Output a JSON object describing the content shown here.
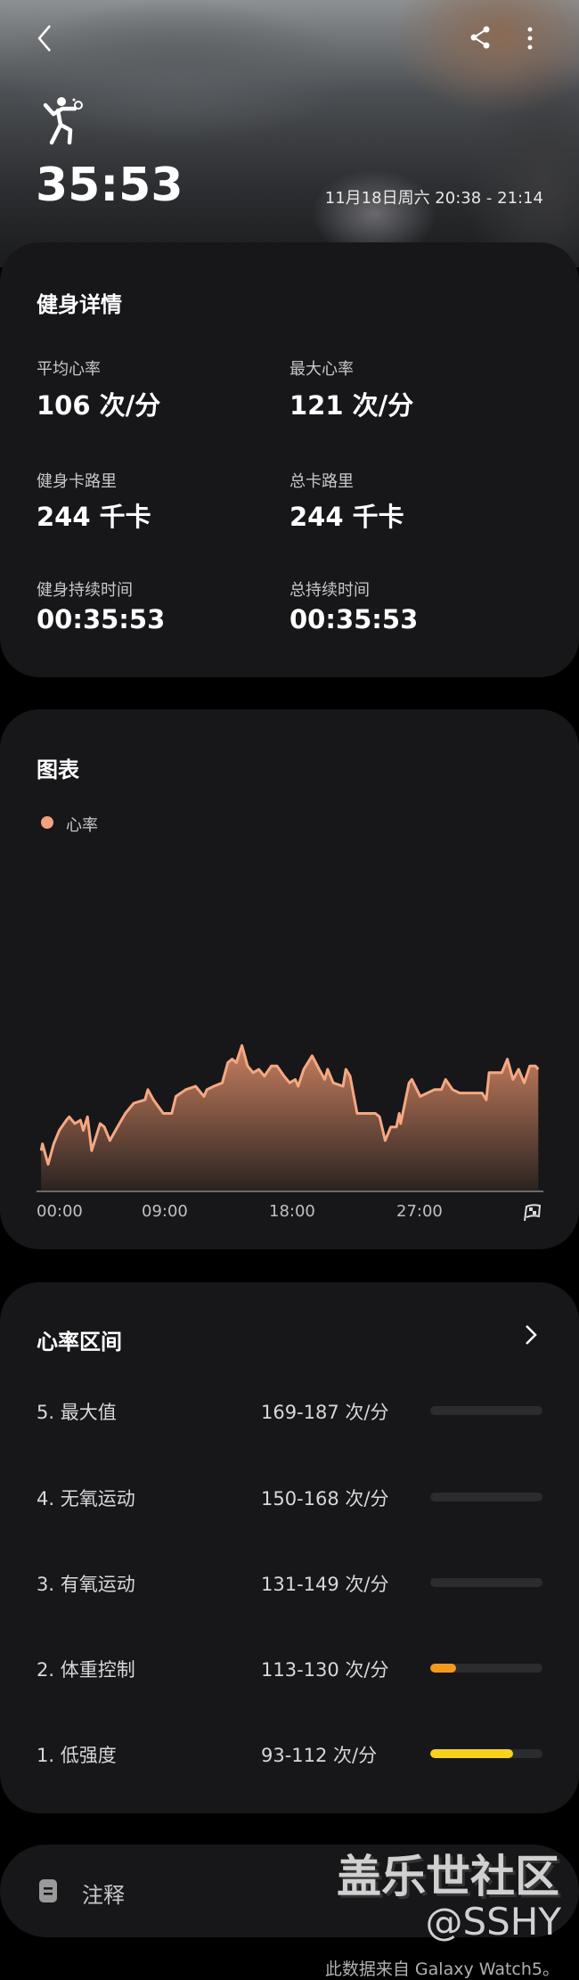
{
  "header": {
    "duration": "35:53",
    "date_range": "11月18日周六 20:38 - 21:14",
    "activity_icon": "badminton-player-icon"
  },
  "details": {
    "title": "健身详情",
    "stats": [
      {
        "label": "平均心率",
        "value": "106 次/分"
      },
      {
        "label": "最大心率",
        "value": "121 次/分"
      },
      {
        "label": "健身卡路里",
        "value": "244 千卡"
      },
      {
        "label": "总卡路里",
        "value": "244 千卡"
      },
      {
        "label": "健身持续时间",
        "value": "00:35:53"
      },
      {
        "label": "总持续时间",
        "value": "00:35:53"
      }
    ]
  },
  "chart_section": {
    "title": "图表"
  },
  "chart_data": {
    "type": "area",
    "legend": [
      {
        "name": "心率",
        "color": "#f4a27c"
      }
    ],
    "legend_position": "top-left",
    "x_ticks": [
      "00:00",
      "09:00",
      "18:00",
      "27:00"
    ],
    "x_unit": "minutes",
    "xlim": [
      0,
      35.9
    ],
    "ylim": [
      78,
      145
    ],
    "grid": false,
    "series": [
      {
        "name": "心率",
        "x": [
          0.2,
          0.3,
          0.7,
          1.1,
          1.5,
          2.0,
          2.2,
          2.6,
          3.0,
          3.2,
          3.5,
          3.8,
          4.4,
          4.7,
          5.1,
          5.5,
          6.2,
          6.8,
          7.6,
          7.8,
          8.2,
          8.9,
          9.5,
          9.8,
          10.5,
          11.2,
          11.8,
          12.0,
          12.5,
          13.1,
          13.5,
          13.8,
          14.1,
          14.5,
          14.9,
          15.3,
          15.7,
          16.1,
          16.6,
          17.0,
          17.5,
          17.9,
          18.3,
          18.5,
          18.9,
          19.5,
          20.0,
          20.4,
          20.6,
          21.0,
          21.7,
          21.9,
          22.2,
          22.7,
          23.5,
          24.0,
          24.3,
          24.7,
          25.1,
          25.5,
          25.7,
          25.8,
          26.4,
          26.6,
          27.2,
          27.7,
          28.2,
          28.7,
          29.0,
          29.5,
          30.0,
          31.6,
          31.9,
          32.1,
          33.0,
          33.4,
          33.8,
          34.2,
          34.6,
          35.0,
          35.4,
          35.6
        ],
        "y": [
          90,
          92,
          86,
          92,
          96,
          99,
          100,
          98,
          99,
          96,
          100,
          90,
          98,
          97,
          93,
          96,
          101,
          104,
          105,
          108,
          105,
          101,
          101,
          106,
          108,
          109,
          106,
          108,
          109,
          110,
          116,
          117,
          116,
          121,
          115,
          113,
          114,
          112,
          115,
          115,
          112,
          110,
          111,
          109,
          114,
          118,
          114,
          111,
          114,
          110,
          109,
          114,
          112,
          101,
          101,
          101,
          100,
          93,
          97,
          97,
          101,
          98,
          110,
          111,
          106,
          107,
          108,
          108,
          111,
          108,
          107,
          107,
          105,
          113,
          113,
          117,
          111,
          114,
          110,
          115,
          115,
          114
        ]
      }
    ]
  },
  "zones": {
    "title": "心率区间",
    "items": [
      {
        "name": "5. 最大值",
        "range": "169-187 次/分",
        "fraction": 0,
        "color": "#2c2c2e"
      },
      {
        "name": "4. 无氧运动",
        "range": "150-168 次/分",
        "fraction": 0,
        "color": "#2c2c2e"
      },
      {
        "name": "3. 有氧运动",
        "range": "131-149 次/分",
        "fraction": 0,
        "color": "#2c2c2e"
      },
      {
        "name": "2. 体重控制",
        "range": "113-130 次/分",
        "fraction": 0.23,
        "color": "#f39a1e"
      },
      {
        "name": "1. 低强度",
        "range": "93-112 次/分",
        "fraction": 0.74,
        "color": "#f6d21a"
      }
    ]
  },
  "notes": {
    "label": "注释"
  },
  "watermark": {
    "line1": "盖乐世社区",
    "line2": "@SSHY"
  },
  "footer": {
    "source": "此数据来自 Galaxy Watch5。"
  }
}
